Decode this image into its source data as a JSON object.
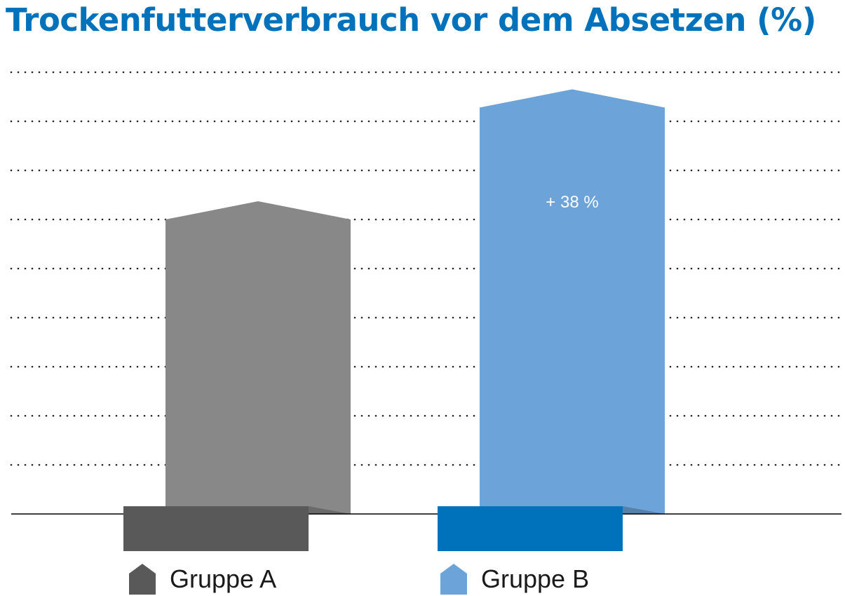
{
  "chart_data": {
    "type": "bar",
    "title": "Trockenfutterverbrauch vor dem Absetzen (%)",
    "xlabel": "",
    "ylabel": "",
    "categories": [
      "Gruppe A",
      "Gruppe B"
    ],
    "values": [
      100,
      138
    ],
    "ylim": [
      0,
      150
    ],
    "grid": true,
    "colors": {
      "Gruppe A": "#888888",
      "Gruppe B": "#6ca4d9"
    },
    "base_colors": {
      "Gruppe A": "#595959",
      "Gruppe B": "#0072bc"
    },
    "annotations": [
      {
        "category": "Gruppe B",
        "text": "+ 38 %"
      }
    ],
    "legend": [
      {
        "label": "Gruppe A",
        "color": "#595959",
        "icon": "house-shape-icon"
      },
      {
        "label": "Gruppe B",
        "color": "#6ca4d9",
        "icon": "house-shape-icon"
      }
    ],
    "legend_position": "bottom"
  }
}
